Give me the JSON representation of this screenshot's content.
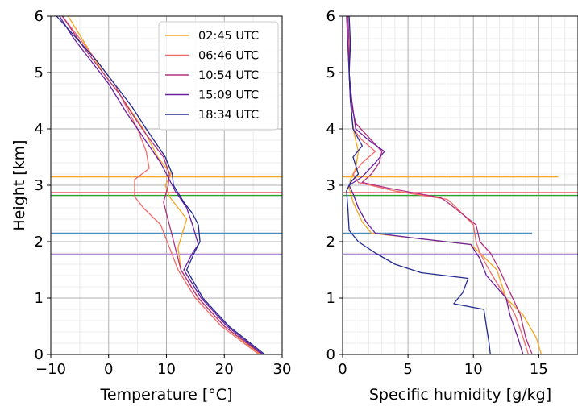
{
  "chart_data": [
    {
      "type": "line",
      "xlabel": "Temperature [°C]",
      "ylabel": "Height [km]",
      "xlim": [
        -10,
        30
      ],
      "ylim": [
        0,
        6
      ],
      "xticks": [
        -10,
        0,
        10,
        20,
        30
      ],
      "yticks": [
        0,
        1,
        2,
        3,
        4,
        5,
        6
      ],
      "grid": true,
      "legend_position": "top-right",
      "series": [
        {
          "name": "02:45 UTC",
          "color": "#f5a623",
          "points": [
            [
              26.2,
              0
            ],
            [
              20,
              0.5
            ],
            [
              15.5,
              1.0
            ],
            [
              12.5,
              1.5
            ],
            [
              12.0,
              1.9
            ],
            [
              13.5,
              2.4
            ],
            [
              10.5,
              2.8
            ],
            [
              9.8,
              3.0
            ],
            [
              10.8,
              3.2
            ],
            [
              8.5,
              3.5
            ],
            [
              7.5,
              3.7
            ],
            [
              6,
              4.0
            ],
            [
              4,
              4.3
            ],
            [
              2,
              4.6
            ],
            [
              -1,
              5.0
            ],
            [
              -4,
              5.5
            ],
            [
              -7,
              6.0
            ]
          ]
        },
        {
          "name": "06:46 UTC",
          "color": "#f26b6b",
          "points": [
            [
              26,
              0
            ],
            [
              19.5,
              0.5
            ],
            [
              15,
              1.0
            ],
            [
              12,
              1.5
            ],
            [
              10.5,
              1.9
            ],
            [
              9,
              2.3
            ],
            [
              6,
              2.6
            ],
            [
              4.5,
              2.8
            ],
            [
              4.5,
              3.1
            ],
            [
              7,
              3.3
            ],
            [
              6.5,
              3.6
            ],
            [
              5,
              4.0
            ],
            [
              3,
              4.4
            ],
            [
              1,
              4.8
            ],
            [
              -2,
              5.2
            ],
            [
              -5,
              5.6
            ],
            [
              -8,
              6.0
            ]
          ]
        },
        {
          "name": "10:54 UTC",
          "color": "#b3307e",
          "points": [
            [
              26.5,
              0
            ],
            [
              20,
              0.5
            ],
            [
              15.5,
              1.0
            ],
            [
              12.5,
              1.5
            ],
            [
              11.5,
              1.9
            ],
            [
              10.5,
              2.3
            ],
            [
              9.5,
              2.7
            ],
            [
              10.3,
              3.0
            ],
            [
              10.5,
              3.2
            ],
            [
              9.5,
              3.5
            ],
            [
              6.5,
              3.9
            ],
            [
              4.5,
              4.2
            ],
            [
              2,
              4.6
            ],
            [
              -1,
              5.0
            ],
            [
              -4,
              5.4
            ],
            [
              -8,
              6.0
            ]
          ]
        },
        {
          "name": "15:09 UTC",
          "color": "#6b1fa0",
          "points": [
            [
              26.7,
              0
            ],
            [
              20.5,
              0.5
            ],
            [
              16,
              1.0
            ],
            [
              13,
              1.5
            ],
            [
              14.5,
              1.8
            ],
            [
              15.5,
              1.95
            ],
            [
              14.5,
              2.3
            ],
            [
              13.5,
              2.6
            ],
            [
              11.5,
              2.9
            ],
            [
              10.5,
              3.1
            ],
            [
              9,
              3.4
            ],
            [
              7,
              3.7
            ],
            [
              5,
              4.0
            ],
            [
              3,
              4.3
            ],
            [
              0,
              4.8
            ],
            [
              -3,
              5.2
            ],
            [
              -6,
              5.6
            ],
            [
              -8.5,
              6.0
            ]
          ]
        },
        {
          "name": "18:34 UTC",
          "color": "#232a8f",
          "points": [
            [
              27,
              0
            ],
            [
              20.8,
              0.5
            ],
            [
              16.3,
              1.0
            ],
            [
              13.5,
              1.5
            ],
            [
              14.8,
              1.8
            ],
            [
              15.8,
              2.0
            ],
            [
              15.5,
              2.3
            ],
            [
              14.5,
              2.5
            ],
            [
              13,
              2.7
            ],
            [
              11.2,
              3.0
            ],
            [
              11,
              3.2
            ],
            [
              10.2,
              3.4
            ],
            [
              9.8,
              3.5
            ],
            [
              8.5,
              3.7
            ],
            [
              6.5,
              4.0
            ],
            [
              4,
              4.4
            ],
            [
              1,
              4.8
            ],
            [
              -2,
              5.2
            ],
            [
              -5.5,
              5.6
            ],
            [
              -9,
              6.0
            ]
          ]
        }
      ],
      "hlines": [
        {
          "y": 3.15,
          "color": "#f5a623"
        },
        {
          "y": 2.87,
          "color": "#d64545"
        },
        {
          "y": 2.82,
          "color": "#2ca02c"
        },
        {
          "y": 2.15,
          "color": "#4f8fc0"
        },
        {
          "y": 1.78,
          "color": "#b38fd6"
        }
      ]
    },
    {
      "type": "line",
      "xlabel": "Specific humidity [g/kg]",
      "xlim": [
        0,
        18
      ],
      "ylim": [
        0,
        6
      ],
      "xticks": [
        0,
        5,
        10,
        15
      ],
      "yticks": [
        0,
        1,
        2,
        3,
        4,
        5,
        6
      ],
      "grid": true,
      "series": [
        {
          "name": "02:45 UTC",
          "color": "#f5a623",
          "points": [
            [
              15.2,
              0
            ],
            [
              14.8,
              0.3
            ],
            [
              13.8,
              0.7
            ],
            [
              12.5,
              1.0
            ],
            [
              11.8,
              1.5
            ],
            [
              10.5,
              1.8
            ],
            [
              9.8,
              1.95
            ],
            [
              6,
              2.05
            ],
            [
              2.2,
              2.15
            ],
            [
              1.5,
              2.35
            ],
            [
              0.8,
              2.7
            ],
            [
              0.5,
              2.95
            ],
            [
              0.6,
              3.1
            ],
            [
              1.0,
              3.3
            ],
            [
              1.2,
              3.6
            ],
            [
              0.9,
              3.9
            ],
            [
              0.7,
              4.2
            ],
            [
              0.6,
              4.6
            ],
            [
              0.5,
              5.0
            ],
            [
              0.4,
              5.5
            ],
            [
              0.4,
              6.0
            ]
          ]
        },
        {
          "name": "06:46 UTC",
          "color": "#f26b6b",
          "points": [
            [
              14.2,
              0
            ],
            [
              13.8,
              0.3
            ],
            [
              13.2,
              0.7
            ],
            [
              12.5,
              1.0
            ],
            [
              11.2,
              1.5
            ],
            [
              10.5,
              1.8
            ],
            [
              10.2,
              2.0
            ],
            [
              10.0,
              2.3
            ],
            [
              8.5,
              2.65
            ],
            [
              8.0,
              2.75
            ],
            [
              4,
              2.9
            ],
            [
              1.2,
              3.05
            ],
            [
              0.8,
              3.2
            ],
            [
              1.5,
              3.4
            ],
            [
              2.5,
              3.6
            ],
            [
              1.5,
              3.8
            ],
            [
              0.8,
              4.0
            ],
            [
              0.6,
              4.5
            ],
            [
              0.5,
              5.0
            ],
            [
              0.5,
              5.5
            ],
            [
              0.4,
              6.0
            ]
          ]
        },
        {
          "name": "10:54 UTC",
          "color": "#b3307e",
          "points": [
            [
              14.5,
              0
            ],
            [
              14,
              0.3
            ],
            [
              13.6,
              0.7
            ],
            [
              13,
              1.0
            ],
            [
              12,
              1.5
            ],
            [
              11.3,
              1.8
            ],
            [
              10.5,
              2.0
            ],
            [
              10.2,
              2.3
            ],
            [
              8,
              2.7
            ],
            [
              7.5,
              2.78
            ],
            [
              3.5,
              2.95
            ],
            [
              1.5,
              3.05
            ],
            [
              2.2,
              3.2
            ],
            [
              2.8,
              3.4
            ],
            [
              3.0,
              3.6
            ],
            [
              1.8,
              3.9
            ],
            [
              1.0,
              4.1
            ],
            [
              0.6,
              4.5
            ],
            [
              0.5,
              5.0
            ],
            [
              0.5,
              5.5
            ],
            [
              0.4,
              6.0
            ]
          ]
        },
        {
          "name": "15:09 UTC",
          "color": "#6b1fa0",
          "points": [
            [
              13.8,
              0
            ],
            [
              13.4,
              0.3
            ],
            [
              12.8,
              0.7
            ],
            [
              12.5,
              1.0
            ],
            [
              11,
              1.4
            ],
            [
              10.5,
              1.7
            ],
            [
              9.8,
              1.95
            ],
            [
              6,
              2.05
            ],
            [
              2.5,
              2.15
            ],
            [
              1.8,
              2.35
            ],
            [
              1.2,
              2.6
            ],
            [
              0.8,
              2.85
            ],
            [
              0.5,
              3.0
            ],
            [
              1.5,
              3.15
            ],
            [
              2.5,
              3.4
            ],
            [
              3.2,
              3.6
            ],
            [
              2,
              3.8
            ],
            [
              1.0,
              4.0
            ],
            [
              0.7,
              4.5
            ],
            [
              0.5,
              5.0
            ],
            [
              0.4,
              5.5
            ],
            [
              0.3,
              6.0
            ]
          ]
        },
        {
          "name": "18:34 UTC",
          "color": "#232a8f",
          "points": [
            [
              11.3,
              0
            ],
            [
              11.2,
              0.2
            ],
            [
              11.0,
              0.5
            ],
            [
              10.8,
              0.8
            ],
            [
              8.5,
              0.9
            ],
            [
              9.2,
              1.1
            ],
            [
              9.6,
              1.35
            ],
            [
              6,
              1.45
            ],
            [
              4,
              1.6
            ],
            [
              2.5,
              1.8
            ],
            [
              1.2,
              2.0
            ],
            [
              0.5,
              2.2
            ],
            [
              0.4,
              2.6
            ],
            [
              0.3,
              2.9
            ],
            [
              0.6,
              3.05
            ],
            [
              1.2,
              3.2
            ],
            [
              0.8,
              3.5
            ],
            [
              1.5,
              3.7
            ],
            [
              0.8,
              4.0
            ],
            [
              0.6,
              4.5
            ],
            [
              0.5,
              5.0
            ],
            [
              0.6,
              5.5
            ],
            [
              0.5,
              6.0
            ]
          ]
        }
      ],
      "hlines": [
        {
          "y": 3.15,
          "x_end": 16.5,
          "color": "#f5a623"
        },
        {
          "y": 2.87,
          "x_end": 18,
          "color": "#d64545"
        },
        {
          "y": 2.82,
          "x_end": 18,
          "color": "#2ca02c"
        },
        {
          "y": 2.15,
          "x_end": 14.5,
          "color": "#4f8fc0"
        },
        {
          "y": 1.78,
          "x_end": 18,
          "color": "#b38fd6"
        }
      ]
    }
  ]
}
